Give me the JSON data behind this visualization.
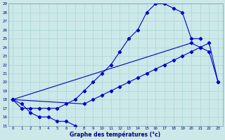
{
  "xlabel": "Graphe des températures (°c)",
  "xlim": [
    -0.5,
    23.5
  ],
  "ylim": [
    15,
    29
  ],
  "xticks": [
    0,
    1,
    2,
    3,
    4,
    5,
    6,
    7,
    8,
    9,
    10,
    11,
    12,
    13,
    14,
    15,
    16,
    17,
    18,
    19,
    20,
    21,
    22,
    23
  ],
  "yticks": [
    15,
    16,
    17,
    18,
    19,
    20,
    21,
    22,
    23,
    24,
    25,
    26,
    27,
    28,
    29
  ],
  "bg_color": "#cce8e8",
  "grid_color": "#b0d8d8",
  "line_color": "#0000cc",
  "line1": [
    18,
    17,
    17,
    17,
    17,
    17,
    17.5,
    18,
    19,
    20,
    21,
    22,
    23.5,
    25,
    26,
    28,
    29,
    29,
    28.5,
    28,
    25,
    25,
    null,
    null
  ],
  "line2": [
    18,
    null,
    null,
    null,
    null,
    null,
    null,
    null,
    null,
    null,
    null,
    null,
    null,
    null,
    null,
    null,
    null,
    null,
    null,
    null,
    24.5,
    24,
    23.5,
    20
  ],
  "line3": [
    18,
    null,
    null,
    null,
    null,
    null,
    null,
    null,
    17.5,
    18,
    18.5,
    19,
    19.5,
    20,
    20.5,
    21,
    21.5,
    22,
    22.5,
    23,
    23.5,
    24,
    24.5,
    20
  ],
  "line4": [
    18,
    17.5,
    16.5,
    16,
    16,
    15.5,
    15.5,
    15,
    null,
    null,
    null,
    null,
    null,
    null,
    null,
    null,
    null,
    null,
    null,
    null,
    null,
    null,
    null,
    null
  ]
}
